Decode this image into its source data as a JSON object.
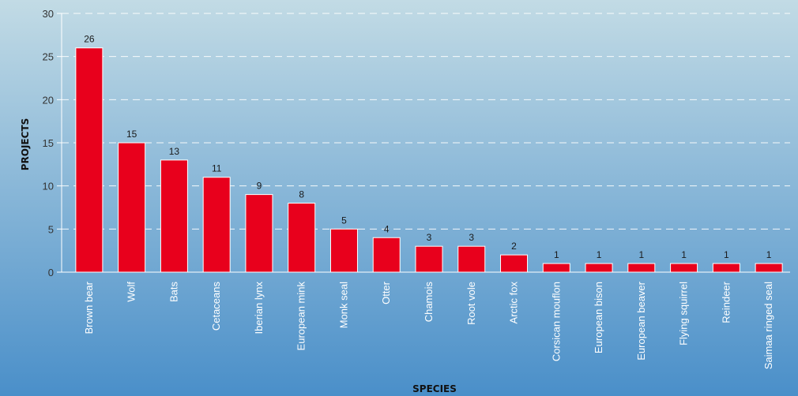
{
  "chart_data": {
    "type": "bar",
    "title": "",
    "xlabel": "SPECIES",
    "ylabel": "PROJECTS",
    "ylim": [
      0,
      30
    ],
    "yticks": [
      0,
      5,
      10,
      15,
      20,
      25,
      30
    ],
    "grid": true,
    "categories": [
      "Brown bear",
      "Wolf",
      "Bats",
      "Cetaceans",
      "Iberian lynx",
      "European mink",
      "Monk seal",
      "Otter",
      "Chamois",
      "Root vole",
      "Arctic fox",
      "Corsican mouflon",
      "European bison",
      "European beaver",
      "Flying squirrel",
      "Reindeer",
      "Saimaa ringed seal"
    ],
    "values": [
      26,
      15,
      13,
      11,
      9,
      8,
      5,
      4,
      3,
      3,
      2,
      1,
      1,
      1,
      1,
      1,
      1
    ],
    "colors": {
      "bar": "#e8001c",
      "bar_edge": "#ffffff",
      "plot_top": "#c2dbe5",
      "plot_bottom": "#4a8fc9",
      "grid": "#ffffff"
    }
  }
}
